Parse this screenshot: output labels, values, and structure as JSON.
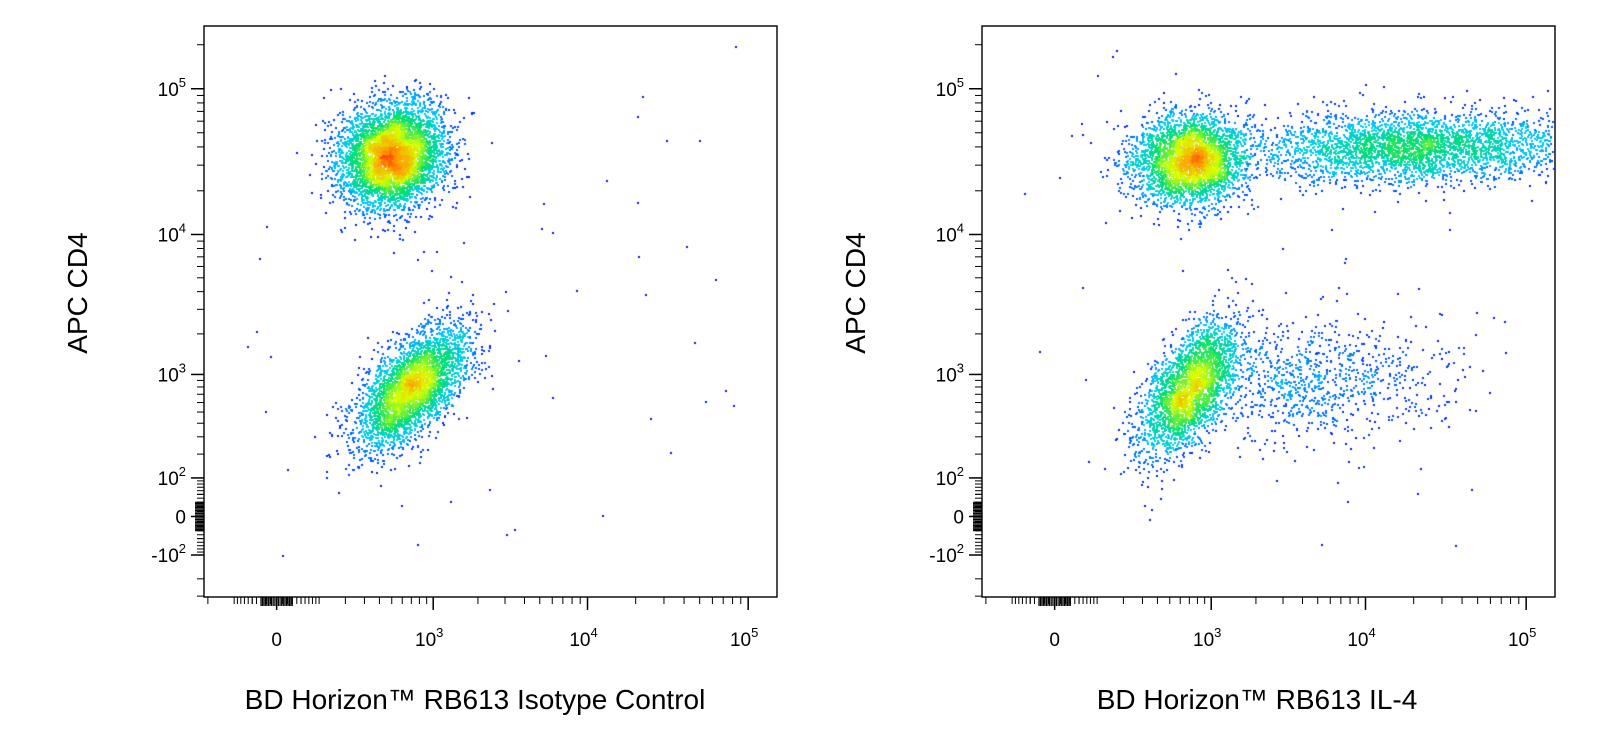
{
  "chart_data": [
    {
      "type": "scatter",
      "xlabel": "BD Horizon™ RB613 Isotype Control",
      "ylabel": "APC CD4",
      "xscale": "biexponential",
      "yscale": "biexponential",
      "x_ticks": [
        {
          "value": 0,
          "base": "0",
          "exp": ""
        },
        {
          "value": 1000,
          "base": "10",
          "exp": "3"
        },
        {
          "value": 10000,
          "base": "10",
          "exp": "4"
        },
        {
          "value": 100000,
          "base": "10",
          "exp": "5"
        }
      ],
      "y_ticks": [
        {
          "value": -100,
          "base": "-10",
          "exp": "2"
        },
        {
          "value": 0,
          "base": "0",
          "exp": ""
        },
        {
          "value": 100,
          "base": "10",
          "exp": "2"
        },
        {
          "value": 1000,
          "base": "10",
          "exp": "3"
        },
        {
          "value": 10000,
          "base": "10",
          "exp": "4"
        },
        {
          "value": 100000,
          "base": "10",
          "exp": "5"
        }
      ],
      "colormap": [
        "#0000ff",
        "#00c8ff",
        "#00e070",
        "#d8ff00",
        "#ff9a00",
        "#ff0000"
      ],
      "populations": [
        {
          "name": "",
          "x_center": 500,
          "y_center": 35000,
          "count": 5200
        },
        {
          "name": "",
          "x_center": 700,
          "y_center": 800,
          "count": 3800
        }
      ]
    },
    {
      "type": "scatter",
      "xlabel": "BD Horizon™ RB613 IL-4",
      "ylabel": "APC CD4",
      "xscale": "biexponential",
      "yscale": "biexponential",
      "x_ticks": [
        {
          "value": 0,
          "base": "0",
          "exp": ""
        },
        {
          "value": 1000,
          "base": "10",
          "exp": "3"
        },
        {
          "value": 10000,
          "base": "10",
          "exp": "4"
        },
        {
          "value": 100000,
          "base": "10",
          "exp": "5"
        }
      ],
      "y_ticks": [
        {
          "value": -100,
          "base": "-10",
          "exp": "2"
        },
        {
          "value": 0,
          "base": "0",
          "exp": ""
        },
        {
          "value": 100,
          "base": "10",
          "exp": "2"
        },
        {
          "value": 1000,
          "base": "10",
          "exp": "3"
        },
        {
          "value": 10000,
          "base": "10",
          "exp": "4"
        },
        {
          "value": 100000,
          "base": "10",
          "exp": "5"
        }
      ],
      "colormap": [
        "#0000ff",
        "#00c8ff",
        "#00e070",
        "#d8ff00",
        "#ff9a00",
        "#ff0000"
      ],
      "populations": [
        {
          "name": "",
          "x_center": 700,
          "y_center": 33000,
          "count": 3600
        },
        {
          "name": "",
          "x_center": 20000,
          "y_center": 40000,
          "count": 3400
        },
        {
          "name": "",
          "x_center": 700,
          "y_center": 800,
          "count": 3000
        },
        {
          "name": "",
          "x_center": 5000,
          "y_center": 900,
          "count": 900
        }
      ]
    }
  ]
}
